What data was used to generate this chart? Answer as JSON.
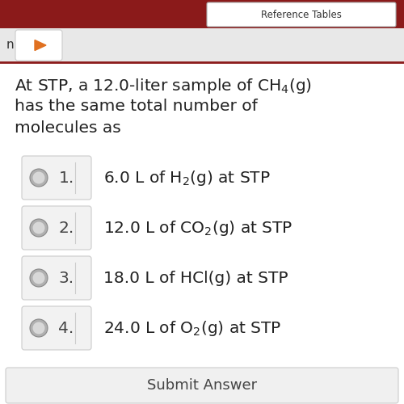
{
  "background_color": "#ffffff",
  "header_color": "#8B1A1A",
  "nav_bg_color": "#e8e8e8",
  "text_color": "#222222",
  "num_color": "#444444",
  "question_line1": "At STP, a 12.0-liter sample of CH$_4$(g)",
  "question_line2": "has the same total number of",
  "question_line3": "molecules as",
  "choice_nums": [
    "1.",
    "2.",
    "3.",
    "4."
  ],
  "choice_texts": [
    "6.0 L of H$_2$(g) at STP",
    "12.0 L of CO$_2$(g) at STP",
    "18.0 L of HCl(g) at STP",
    "24.0 L of O$_2$(g) at STP"
  ],
  "choice_box_color": "#f2f2f2",
  "choice_box_border": "#cccccc",
  "radio_fill": "#b0b0b0",
  "radio_inner": "#d8d8d8",
  "submit_text": "Submit Answer",
  "submit_bar_color": "#f0f0f0",
  "ref_button_text": "Reference Tables",
  "ref_button_color": "#ffffff",
  "nav_arrow_color": "#e07020",
  "question_fontsize": 14.5,
  "choice_fontsize": 14.5,
  "submit_fontsize": 13
}
